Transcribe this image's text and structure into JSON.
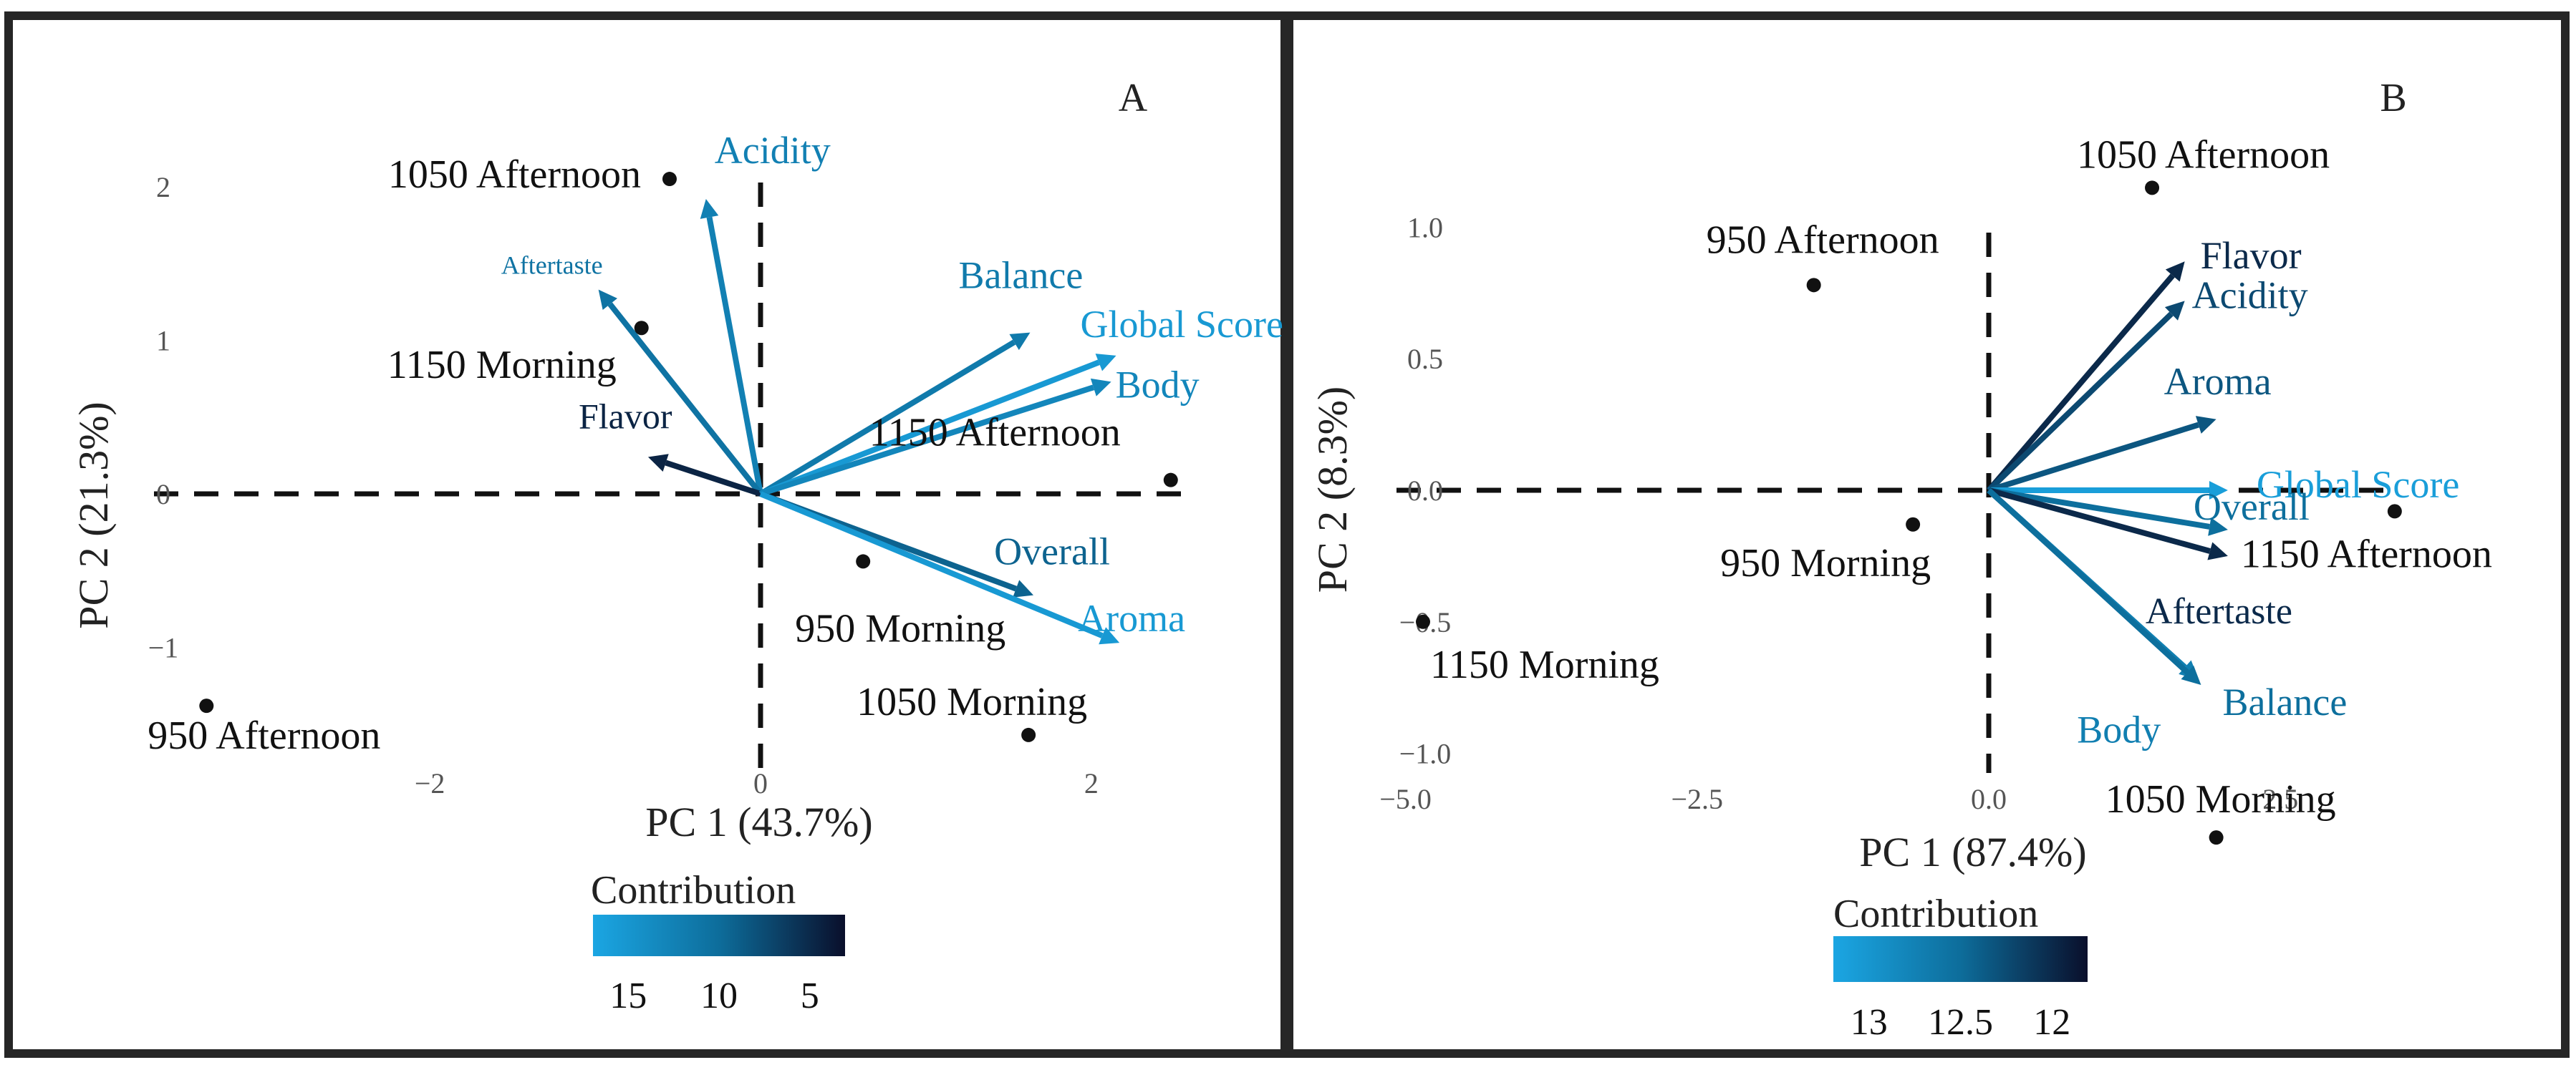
{
  "chart_data": [
    {
      "panel_label": "A",
      "type": "scatter",
      "title": "",
      "xlabel": "PC 1 (43.7%)",
      "ylabel": "PC 2 (21.3%)",
      "xlim": [
        -3.45,
        2.85
      ],
      "ylim": [
        -1.85,
        2.6
      ],
      "x_ticks": [
        -2,
        0,
        2
      ],
      "y_ticks": [
        -1,
        0,
        1,
        2
      ],
      "grid": false,
      "points": [
        {
          "label": "1050 Afternoon",
          "x": -0.55,
          "y": 2.05
        },
        {
          "label": "1150 Morning",
          "x": -0.72,
          "y": 1.08
        },
        {
          "label": "1150 Afternoon",
          "x": 2.48,
          "y": 0.09
        },
        {
          "label": "950 Morning",
          "x": 0.62,
          "y": -0.44
        },
        {
          "label": "1050 Morning",
          "x": 1.62,
          "y": -1.57
        },
        {
          "label": "950 Afternoon",
          "x": -3.35,
          "y": -1.38
        }
      ],
      "vectors": [
        {
          "label": "Acidity",
          "x": -0.33,
          "y": 1.92,
          "contribution": 13
        },
        {
          "label": "Aftertaste",
          "x": -0.98,
          "y": 1.33,
          "contribution": 11
        },
        {
          "label": "Flavor",
          "x": -0.68,
          "y": 0.24,
          "contribution": 3
        },
        {
          "label": "Balance",
          "x": 1.63,
          "y": 1.05,
          "contribution": 12
        },
        {
          "label": "Global Score",
          "x": 2.15,
          "y": 0.9,
          "contribution": 17
        },
        {
          "label": "Body",
          "x": 2.12,
          "y": 0.73,
          "contribution": 14
        },
        {
          "label": "Overall",
          "x": 1.65,
          "y": -0.66,
          "contribution": 9
        },
        {
          "label": "Aroma",
          "x": 2.17,
          "y": -0.97,
          "contribution": 17
        }
      ],
      "legend": {
        "title": "Contribution",
        "placement": "bottom",
        "ticks": [
          "15",
          "10",
          "5"
        ],
        "range": [
          19,
          1
        ],
        "colors": [
          "#1ba6e3",
          "#0a0f2b"
        ]
      }
    },
    {
      "panel_label": "B",
      "type": "scatter",
      "title": "",
      "xlabel": "PC 1 (87.4%)",
      "ylabel": "PC 2 (8.3%)",
      "xlim": [
        -5.6,
        4.1
      ],
      "ylim": [
        -1.3,
        1.38
      ],
      "x_ticks": [
        -5.0,
        -2.5,
        0.0,
        2.5
      ],
      "x_tick_labels": [
        "−5.0",
        "−2.5",
        "0.0",
        "2.5"
      ],
      "y_ticks": [
        1.0,
        0.5,
        0.0,
        -0.5,
        -1.0
      ],
      "y_tick_labels": [
        "1.0",
        "0.5",
        "0.0",
        "−0.5",
        "−1.0"
      ],
      "grid": false,
      "points": [
        {
          "label": "1050 Afternoon",
          "x": 1.4,
          "y": 1.15
        },
        {
          "label": "950 Afternoon",
          "x": -1.5,
          "y": 0.78
        },
        {
          "label": "950 Morning",
          "x": -0.65,
          "y": -0.13
        },
        {
          "label": "1150 Morning",
          "x": -4.85,
          "y": -0.5
        },
        {
          "label": "1150 Afternoon",
          "x": 3.48,
          "y": -0.08
        },
        {
          "label": "1050 Morning",
          "x": 1.95,
          "y": -1.32
        }
      ],
      "vectors": [
        {
          "label": "Flavor",
          "x": 1.68,
          "y": 0.87,
          "contribution": 12.05
        },
        {
          "label": "Acidity",
          "x": 1.68,
          "y": 0.72,
          "contribution": 12.3
        },
        {
          "label": "Aroma",
          "x": 1.95,
          "y": 0.27,
          "contribution": 12.4
        },
        {
          "label": "Global Score",
          "x": 2.05,
          "y": 0.0,
          "contribution": 13.2
        },
        {
          "label": "Overall",
          "x": 2.05,
          "y": -0.15,
          "contribution": 12.6
        },
        {
          "label": "Aftertaste",
          "x": 2.05,
          "y": -0.25,
          "contribution": 12.05
        },
        {
          "label": "Body",
          "x": 1.8,
          "y": -0.72,
          "contribution": 12.8
        },
        {
          "label": "Balance",
          "x": 1.82,
          "y": -0.74,
          "contribution": 12.6
        }
      ],
      "legend": {
        "title": "Contribution",
        "placement": "bottom",
        "ticks": [
          "13",
          "12.5",
          "12"
        ],
        "range": [
          13.3,
          11.85
        ],
        "colors": [
          "#1ba6e3",
          "#0a0f2b"
        ]
      }
    }
  ]
}
